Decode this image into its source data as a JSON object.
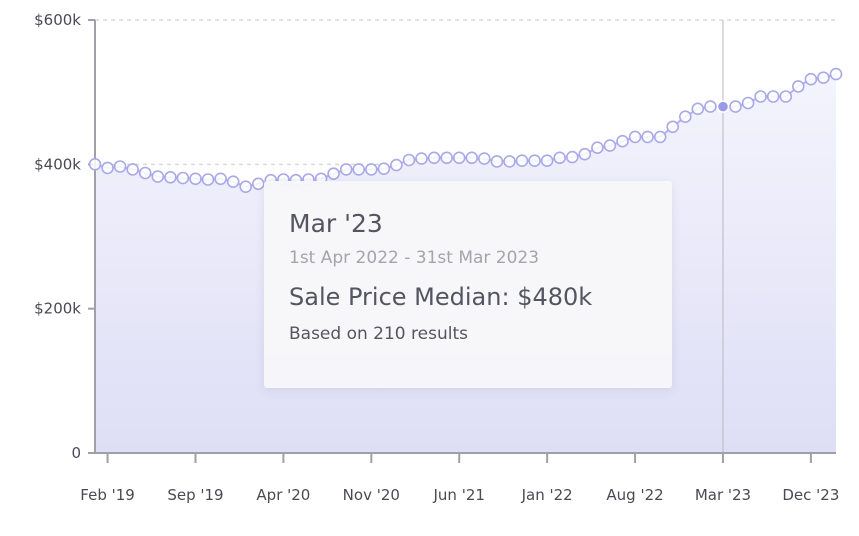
{
  "chart_data": {
    "type": "area",
    "x_tick_labels": [
      "Feb '19",
      "Sep '19",
      "Apr '20",
      "Nov '20",
      "Jun '21",
      "Jan '22",
      "Aug '22",
      "Mar '23",
      "Dec '23"
    ],
    "y_tick_labels": [
      "0",
      "$200k",
      "$400k",
      "$600k"
    ],
    "y_ticks": [
      0,
      200,
      400,
      600
    ],
    "ylim": [
      0,
      600
    ],
    "y_unit": "thousands of dollars",
    "x_start": "Jan '19",
    "x_end": "Dec '23",
    "grid": true,
    "series": [
      {
        "values": [
          400,
          395,
          397,
          393,
          388,
          383,
          382,
          381,
          380,
          379,
          380,
          376,
          369,
          373,
          378,
          379,
          378,
          379,
          380,
          387,
          393,
          393,
          393,
          394,
          399,
          406,
          408,
          409,
          409,
          409,
          409,
          408,
          404,
          404,
          405,
          405,
          405,
          409,
          410,
          414,
          423,
          426,
          432,
          438,
          438,
          438,
          452,
          466,
          477,
          480,
          480,
          480,
          485,
          494,
          494,
          494,
          508,
          518,
          520,
          525
        ]
      }
    ],
    "highlight": {
      "x_label": "Mar '23",
      "value": 480
    },
    "colors": {
      "line": "#b3b3ec",
      "marker_fill": "#ffffff",
      "marker_stroke": "#a9a9e8",
      "area_top": "#f4f4fd",
      "area_bottom": "#dedef6",
      "grid": "#d9d9de",
      "axis": "#a0a0a8",
      "highlight_line": "#b9b9c2",
      "highlight_point": "#9a9ae6"
    }
  },
  "tooltip": {
    "title": "Mar '23",
    "range": "1st Apr 2022 - 31st Mar 2023",
    "value_line": "Sale Price Median: $480k",
    "note": "Based on 210 results"
  }
}
